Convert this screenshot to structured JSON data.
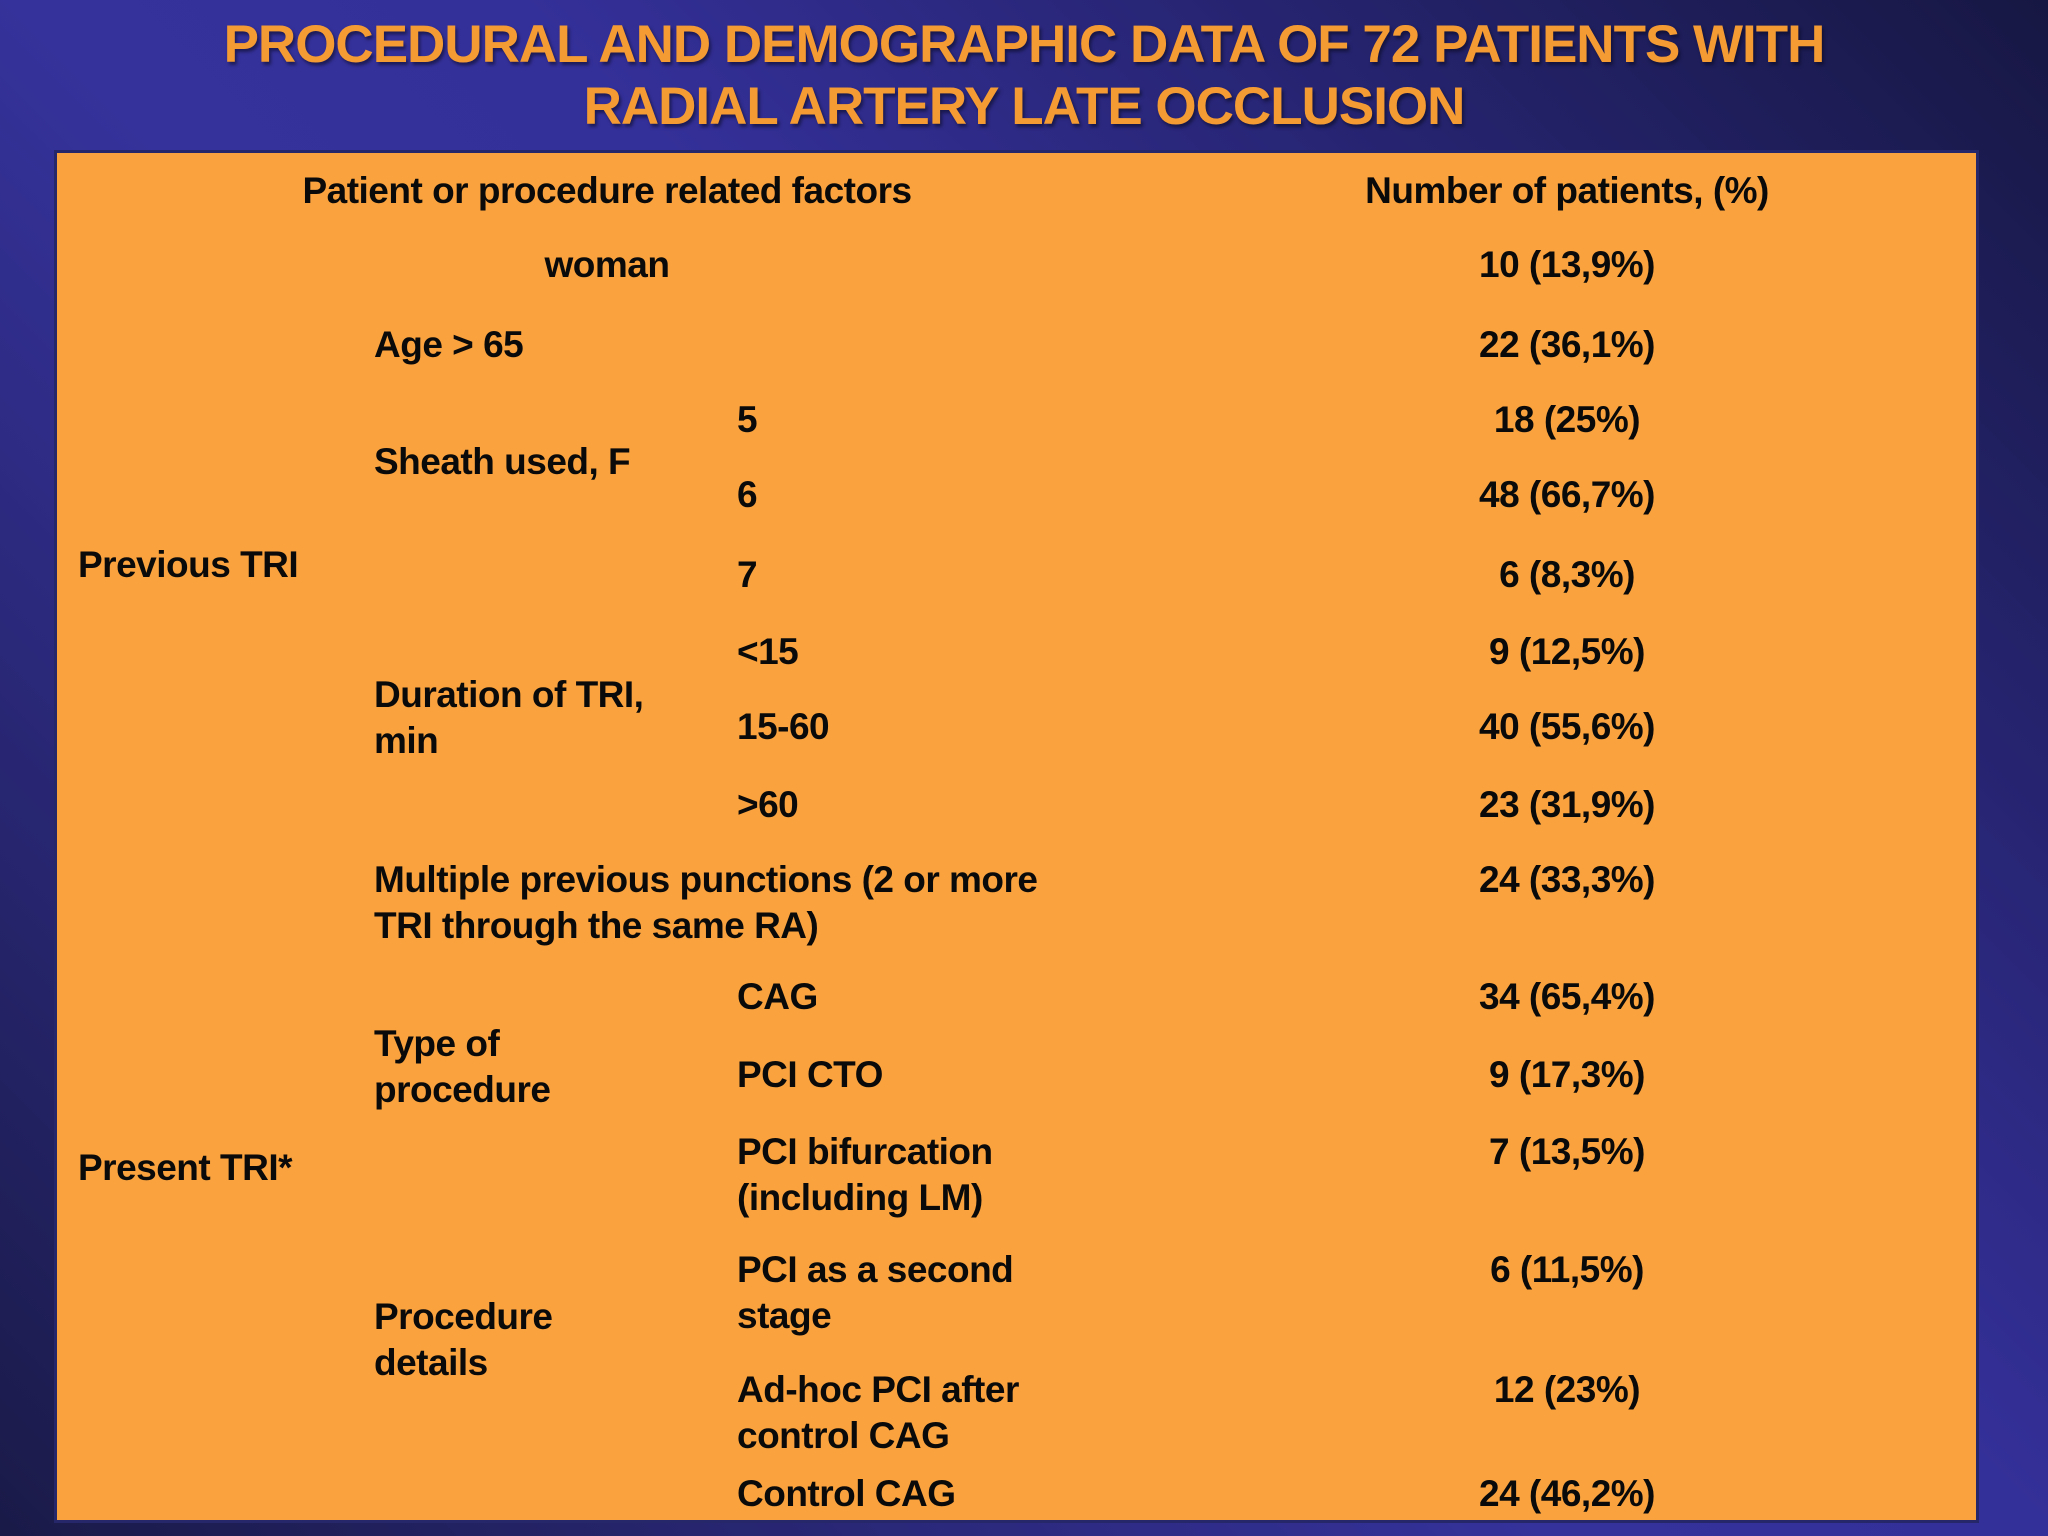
{
  "slide": {
    "title_line1": "PROCEDURAL AND DEMOGRAPHIC DATA OF 72 PATIENTS WITH",
    "title_line2": "RADIAL ARTERY LATE OCCLUSION"
  },
  "colors": {
    "background_light": "#35329b",
    "background_dark": "#1a1a48",
    "panel_orange": "#f9a23e",
    "title_orange": "#f49b33",
    "text_black": "#0a0a0a"
  },
  "table": {
    "header": {
      "factors": "Patient or procedure related factors",
      "patients": "Number of patients, (%)"
    },
    "groups": {
      "previous": "Previous TRI",
      "present": "Present TRI*"
    },
    "rows": {
      "woman": {
        "label": "woman",
        "value": "10 (13,9%)"
      },
      "age": {
        "label": "Age > 65",
        "value": "22 (36,1%)"
      },
      "sheath": {
        "label": "Sheath used, F"
      },
      "sheath5": {
        "label": "5",
        "value": "18 (25%)"
      },
      "sheath6": {
        "label": "6",
        "value": "48 (66,7%)"
      },
      "sheath7": {
        "label": "7",
        "value": "6 (8,3%)"
      },
      "duration": {
        "label": "Duration of TRI,\nmin"
      },
      "dur_lt15": {
        "label": "<15",
        "value": "9 (12,5%)"
      },
      "dur_15_60": {
        "label": "15-60",
        "value": "40 (55,6%)"
      },
      "dur_gt60": {
        "label": ">60",
        "value": "23 (31,9%)"
      },
      "punctions": {
        "label": "Multiple previous punctions (2 or more\nTRI through the same RA)",
        "value": "24 (33,3%)"
      },
      "type_proc": {
        "label": "Type of\nprocedure"
      },
      "cag": {
        "label": "CAG",
        "value": "34 (65,4%)"
      },
      "pci_cto": {
        "label": "PCI CTO",
        "value": "9 (17,3%)"
      },
      "bifurcation": {
        "label": "PCI bifurcation\n(including LM)",
        "value": "7 (13,5%)"
      },
      "details": {
        "label": "Procedure\ndetails"
      },
      "second_stage": {
        "label": "PCI as a second\nstage",
        "value": "6 (11,5%)"
      },
      "adhoc": {
        "label": "Ad-hoc PCI after\ncontrol CAG",
        "value": "12 (23%)"
      },
      "control_cag": {
        "label": "Control CAG",
        "value": "24 (46,2%)"
      }
    }
  }
}
